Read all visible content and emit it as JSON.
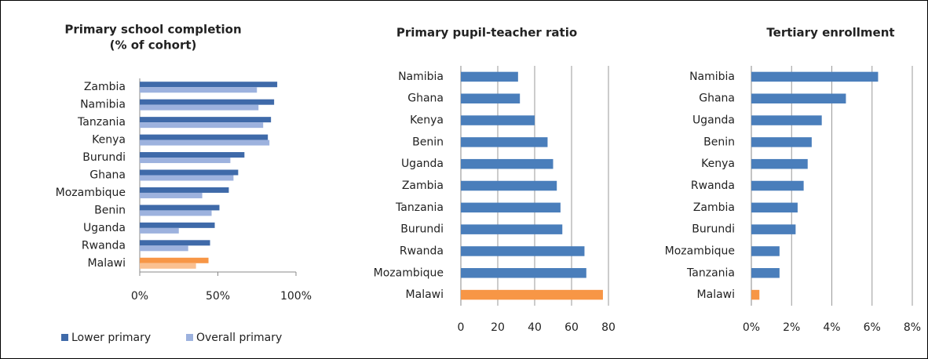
{
  "chart_data": [
    {
      "type": "bar",
      "orientation": "horizontal",
      "title": [
        "Primary school completion",
        "(% of cohort)"
      ],
      "categories": [
        "Zambia",
        "Namibia",
        "Tanzania",
        "Kenya",
        "Burundi",
        "Ghana",
        "Mozambique",
        "Benin",
        "Uganda",
        "Rwanda",
        "Malawi"
      ],
      "series": [
        {
          "name": "Lower primary",
          "color": "#3f6aa9",
          "values": [
            88,
            86,
            84,
            82,
            67,
            63,
            57,
            51,
            48,
            45,
            44
          ],
          "colors": [
            "#3f6aa9",
            "#3f6aa9",
            "#3f6aa9",
            "#3f6aa9",
            "#3f6aa9",
            "#3f6aa9",
            "#3f6aa9",
            "#3f6aa9",
            "#3f6aa9",
            "#3f6aa9",
            "#f79646"
          ]
        },
        {
          "name": "Overall primary",
          "color": "#9db2de",
          "values": [
            75,
            76,
            79,
            83,
            58,
            60,
            40,
            46,
            25,
            31,
            36
          ],
          "colors": [
            "#9db2de",
            "#9db2de",
            "#9db2de",
            "#9db2de",
            "#9db2de",
            "#9db2de",
            "#9db2de",
            "#9db2de",
            "#9db2de",
            "#9db2de",
            "#fac090"
          ]
        }
      ],
      "xlim": [
        0,
        100
      ],
      "xticks": [
        {
          "value": 0,
          "label": "0%"
        },
        {
          "value": 50,
          "label": "50%"
        },
        {
          "value": 100,
          "label": "100%"
        }
      ],
      "grid": false,
      "legend": "bottom"
    },
    {
      "type": "bar",
      "orientation": "horizontal",
      "title": [
        "Primary pupil-teacher ratio"
      ],
      "categories": [
        "Namibia",
        "Ghana",
        "Kenya",
        "Benin",
        "Uganda",
        "Zambia",
        "Tanzania",
        "Burundi",
        "Rwanda",
        "Mozambique",
        "Malawi"
      ],
      "values": [
        31,
        32,
        40,
        47,
        50,
        52,
        54,
        55,
        67,
        68,
        77
      ],
      "colors": [
        "#4a7ebb",
        "#4a7ebb",
        "#4a7ebb",
        "#4a7ebb",
        "#4a7ebb",
        "#4a7ebb",
        "#4a7ebb",
        "#4a7ebb",
        "#4a7ebb",
        "#4a7ebb",
        "#f79646"
      ],
      "xlim": [
        0,
        80
      ],
      "xticks": [
        0,
        20,
        40,
        60,
        80
      ],
      "grid": true
    },
    {
      "type": "bar",
      "orientation": "horizontal",
      "title": [
        "Tertiary enrollment"
      ],
      "categories": [
        "Namibia",
        "Ghana",
        "Uganda",
        "Benin",
        "Kenya",
        "Rwanda",
        "Zambia",
        "Burundi",
        "Mozambique",
        "Tanzania",
        "Malawi"
      ],
      "values": [
        6.3,
        4.7,
        3.5,
        3.0,
        2.8,
        2.6,
        2.3,
        2.2,
        1.4,
        1.4,
        0.4
      ],
      "colors": [
        "#4a7ebb",
        "#4a7ebb",
        "#4a7ebb",
        "#4a7ebb",
        "#4a7ebb",
        "#4a7ebb",
        "#4a7ebb",
        "#4a7ebb",
        "#4a7ebb",
        "#4a7ebb",
        "#f79646"
      ],
      "xlim": [
        0,
        8
      ],
      "xticks": [
        {
          "value": 0,
          "label": "0%"
        },
        {
          "value": 2,
          "label": "2%"
        },
        {
          "value": 4,
          "label": "4%"
        },
        {
          "value": 6,
          "label": "6%"
        },
        {
          "value": 8,
          "label": "8%"
        }
      ],
      "grid": true
    }
  ]
}
